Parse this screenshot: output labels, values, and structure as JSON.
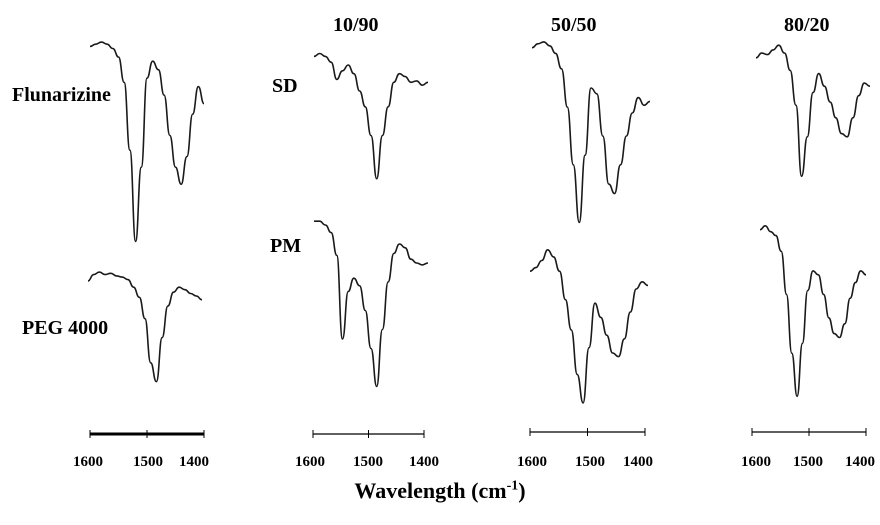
{
  "chart_data": {
    "type": "line",
    "xlabel": {
      "base": "Wavelength (cm",
      "superscript": "-1",
      "suffix": ")"
    },
    "column_titles": [
      "10/90",
      "50/50",
      "80/20"
    ],
    "row_labels": {
      "drug": "Flunarizine",
      "polymer": "PEG 4000",
      "sd": "SD",
      "pm": "PM"
    },
    "x_ticks": [
      "1600",
      "1500",
      "1400"
    ],
    "xlim": [
      1600,
      1400
    ],
    "y_unit": "relative transmittance (0 = absorption minimum, 1 = baseline)",
    "panels": [
      {
        "name": "Flunarizine",
        "x": [
          1600,
          1590,
          1580,
          1570,
          1560,
          1550,
          1540,
          1530,
          1520,
          1510,
          1500,
          1490,
          1480,
          1470,
          1460,
          1450,
          1440,
          1430,
          1420,
          1410,
          1400
        ],
        "y": [
          0.97,
          0.98,
          0.99,
          0.98,
          0.96,
          0.92,
          0.8,
          0.48,
          0.05,
          0.4,
          0.82,
          0.9,
          0.86,
          0.74,
          0.55,
          0.4,
          0.32,
          0.45,
          0.65,
          0.78,
          0.7
        ]
      },
      {
        "name": "PEG 4000",
        "x": [
          1600,
          1590,
          1580,
          1570,
          1560,
          1550,
          1540,
          1530,
          1520,
          1510,
          1500,
          1490,
          1480,
          1470,
          1460,
          1450,
          1440,
          1430,
          1420,
          1410,
          1400
        ],
        "y": [
          0.85,
          0.9,
          0.92,
          0.9,
          0.91,
          0.89,
          0.88,
          0.86,
          0.8,
          0.72,
          0.55,
          0.2,
          0.05,
          0.4,
          0.65,
          0.76,
          0.8,
          0.78,
          0.75,
          0.73,
          0.7
        ]
      },
      {
        "name": "SD 10/90",
        "x": [
          1600,
          1590,
          1580,
          1570,
          1560,
          1550,
          1540,
          1530,
          1520,
          1510,
          1500,
          1490,
          1480,
          1470,
          1460,
          1450,
          1440,
          1430,
          1420,
          1410,
          1400
        ],
        "y": [
          0.9,
          0.92,
          0.9,
          0.86,
          0.74,
          0.8,
          0.84,
          0.78,
          0.66,
          0.55,
          0.35,
          0.05,
          0.35,
          0.55,
          0.72,
          0.78,
          0.76,
          0.72,
          0.73,
          0.7,
          0.72
        ]
      },
      {
        "name": "PM 10/90",
        "x": [
          1600,
          1590,
          1580,
          1570,
          1560,
          1550,
          1540,
          1530,
          1520,
          1510,
          1500,
          1490,
          1480,
          1470,
          1460,
          1450,
          1440,
          1430,
          1420,
          1410,
          1400
        ],
        "y": [
          0.92,
          0.92,
          0.9,
          0.86,
          0.74,
          0.3,
          0.55,
          0.62,
          0.58,
          0.45,
          0.25,
          0.05,
          0.35,
          0.6,
          0.75,
          0.8,
          0.78,
          0.72,
          0.7,
          0.69,
          0.7
        ]
      },
      {
        "name": "SD 50/50",
        "x": [
          1600,
          1590,
          1580,
          1570,
          1560,
          1550,
          1540,
          1530,
          1520,
          1510,
          1500,
          1490,
          1480,
          1470,
          1460,
          1450,
          1440,
          1430,
          1420,
          1410,
          1400
        ],
        "y": [
          0.96,
          0.98,
          0.99,
          0.97,
          0.93,
          0.85,
          0.65,
          0.35,
          0.05,
          0.4,
          0.75,
          0.72,
          0.5,
          0.25,
          0.2,
          0.35,
          0.5,
          0.62,
          0.7,
          0.66,
          0.68
        ]
      },
      {
        "name": "PM 50/50",
        "x": [
          1600,
          1590,
          1580,
          1570,
          1560,
          1550,
          1540,
          1530,
          1520,
          1510,
          1500,
          1490,
          1480,
          1470,
          1460,
          1450,
          1440,
          1430,
          1420,
          1410,
          1400
        ],
        "y": [
          0.78,
          0.8,
          0.84,
          0.9,
          0.86,
          0.78,
          0.62,
          0.45,
          0.2,
          0.04,
          0.35,
          0.6,
          0.52,
          0.42,
          0.32,
          0.3,
          0.4,
          0.55,
          0.68,
          0.72,
          0.7
        ]
      },
      {
        "name": "SD 80/20",
        "x": [
          1600,
          1590,
          1580,
          1570,
          1560,
          1550,
          1540,
          1530,
          1520,
          1510,
          1500,
          1490,
          1480,
          1470,
          1460,
          1450,
          1440,
          1430,
          1420,
          1410,
          1400
        ],
        "y": [
          0.9,
          0.93,
          0.92,
          0.95,
          0.98,
          0.93,
          0.82,
          0.6,
          0.15,
          0.4,
          0.68,
          0.8,
          0.72,
          0.62,
          0.52,
          0.42,
          0.4,
          0.52,
          0.66,
          0.74,
          0.72
        ]
      },
      {
        "name": "PM 80/20",
        "x": [
          1600,
          1590,
          1580,
          1570,
          1560,
          1550,
          1540,
          1530,
          1520,
          1510,
          1500,
          1490,
          1480,
          1470,
          1460,
          1450,
          1440,
          1430,
          1420,
          1410,
          1400
        ],
        "y": [
          0.93,
          0.95,
          0.92,
          0.9,
          0.82,
          0.6,
          0.3,
          0.08,
          0.35,
          0.62,
          0.72,
          0.7,
          0.6,
          0.48,
          0.4,
          0.38,
          0.45,
          0.58,
          0.66,
          0.72,
          0.7
        ]
      }
    ]
  }
}
